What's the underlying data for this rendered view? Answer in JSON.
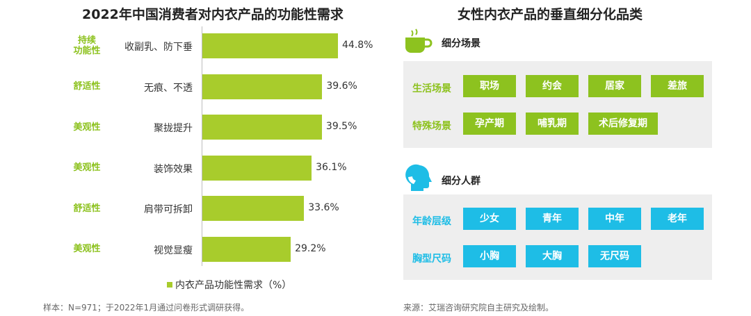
{
  "left": {
    "title": "2022年中国消费者对内衣产品的功能性需求",
    "legend": "内衣产品功能性需求（%）",
    "note": "样本：N=971；于2022年1月通过问卷形式调研获得。"
  },
  "chart_data": {
    "type": "bar",
    "orientation": "horizontal",
    "title": "2022年中国消费者对内衣产品的功能性需求",
    "categories": [
      "收副乳、防下垂",
      "无痕、不透",
      "聚拢提升",
      "装饰效果",
      "肩带可拆卸",
      "视觉显瘦"
    ],
    "groups": [
      "持续\n功能性",
      "舒适性",
      "美观性",
      "美观性",
      "舒适性",
      "美观性"
    ],
    "series": [
      {
        "name": "内衣产品功能性需求（%）",
        "values": [
          44.8,
          39.6,
          39.5,
          36.1,
          33.6,
          29.2
        ],
        "value_labels": [
          "44.8%",
          "39.6%",
          "39.5%",
          "36.1%",
          "33.6%",
          "29.2%"
        ]
      }
    ],
    "color": "#a8cc2c",
    "legend_position": "bottom",
    "grid": false
  },
  "right": {
    "title": "女性内衣产品的垂直细分化品类",
    "section1": {
      "icon": "cup-icon",
      "title": "细分场景",
      "color": "#8dc21f",
      "rows": [
        {
          "label": "生活场景",
          "tags": [
            "职场",
            "约会",
            "居家",
            "差旅"
          ]
        },
        {
          "label": "特殊场景",
          "tags": [
            "孕产期",
            "哺乳期",
            "术后修复期"
          ]
        }
      ]
    },
    "section2": {
      "icon": "person-head-icon",
      "title": "细分人群",
      "color": "#1ebde6",
      "rows": [
        {
          "label": "年龄层级",
          "tags": [
            "少女",
            "青年",
            "中年",
            "老年"
          ]
        },
        {
          "label": "胸型尺码",
          "tags": [
            "小胸",
            "大胸",
            "无尺码"
          ]
        }
      ]
    },
    "note": "来源：艾瑞咨询研究院自主研究及绘制。"
  }
}
